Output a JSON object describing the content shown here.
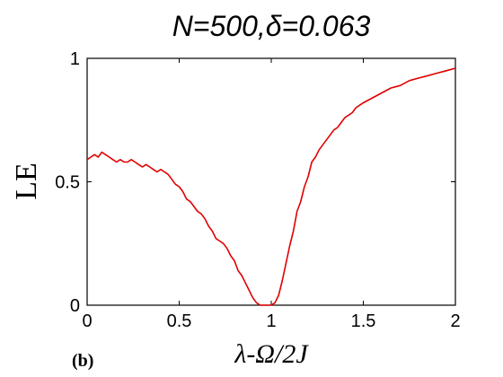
{
  "chart_data": {
    "type": "line",
    "title": "N=500,δ=0.063",
    "xlabel": "λ-Ω/2J",
    "ylabel": "LE",
    "panel_label": "(b)",
    "xlim": [
      0,
      2
    ],
    "ylim": [
      0,
      1
    ],
    "x_ticks": [
      0,
      0.5,
      1,
      1.5,
      2
    ],
    "x_tick_labels": [
      "0",
      "0.5",
      "1",
      "1.5",
      "2"
    ],
    "y_ticks": [
      0,
      0.5,
      1
    ],
    "y_tick_labels": [
      "0",
      "0.5",
      "1"
    ],
    "grid": false,
    "series": [
      {
        "color": "#e00000",
        "x": [
          0.0,
          0.02,
          0.04,
          0.06,
          0.08,
          0.1,
          0.12,
          0.14,
          0.16,
          0.18,
          0.2,
          0.22,
          0.24,
          0.26,
          0.28,
          0.3,
          0.32,
          0.34,
          0.36,
          0.38,
          0.4,
          0.42,
          0.44,
          0.46,
          0.48,
          0.5,
          0.52,
          0.54,
          0.56,
          0.58,
          0.6,
          0.62,
          0.64,
          0.66,
          0.68,
          0.7,
          0.72,
          0.74,
          0.76,
          0.78,
          0.8,
          0.82,
          0.84,
          0.86,
          0.88,
          0.9,
          0.92,
          0.94,
          0.96,
          0.98,
          1.0,
          1.02,
          1.04,
          1.06,
          1.08,
          1.1,
          1.12,
          1.14,
          1.16,
          1.18,
          1.2,
          1.22,
          1.24,
          1.26,
          1.28,
          1.3,
          1.32,
          1.34,
          1.36,
          1.38,
          1.4,
          1.42,
          1.44,
          1.46,
          1.48,
          1.5,
          1.55,
          1.6,
          1.65,
          1.7,
          1.75,
          1.8,
          1.85,
          1.9,
          1.95,
          2.0
        ],
        "y": [
          0.59,
          0.6,
          0.61,
          0.6,
          0.62,
          0.61,
          0.6,
          0.59,
          0.58,
          0.59,
          0.58,
          0.58,
          0.59,
          0.58,
          0.57,
          0.56,
          0.57,
          0.56,
          0.55,
          0.54,
          0.55,
          0.54,
          0.53,
          0.51,
          0.49,
          0.48,
          0.46,
          0.43,
          0.42,
          0.4,
          0.38,
          0.37,
          0.35,
          0.32,
          0.3,
          0.27,
          0.26,
          0.25,
          0.23,
          0.2,
          0.18,
          0.14,
          0.12,
          0.09,
          0.06,
          0.03,
          0.01,
          0.0,
          0.0,
          0.0,
          0.0,
          0.01,
          0.04,
          0.1,
          0.17,
          0.24,
          0.3,
          0.38,
          0.42,
          0.48,
          0.52,
          0.58,
          0.6,
          0.63,
          0.65,
          0.67,
          0.69,
          0.71,
          0.72,
          0.74,
          0.76,
          0.77,
          0.78,
          0.8,
          0.81,
          0.82,
          0.84,
          0.86,
          0.88,
          0.89,
          0.91,
          0.92,
          0.93,
          0.94,
          0.95,
          0.96
        ]
      }
    ]
  }
}
